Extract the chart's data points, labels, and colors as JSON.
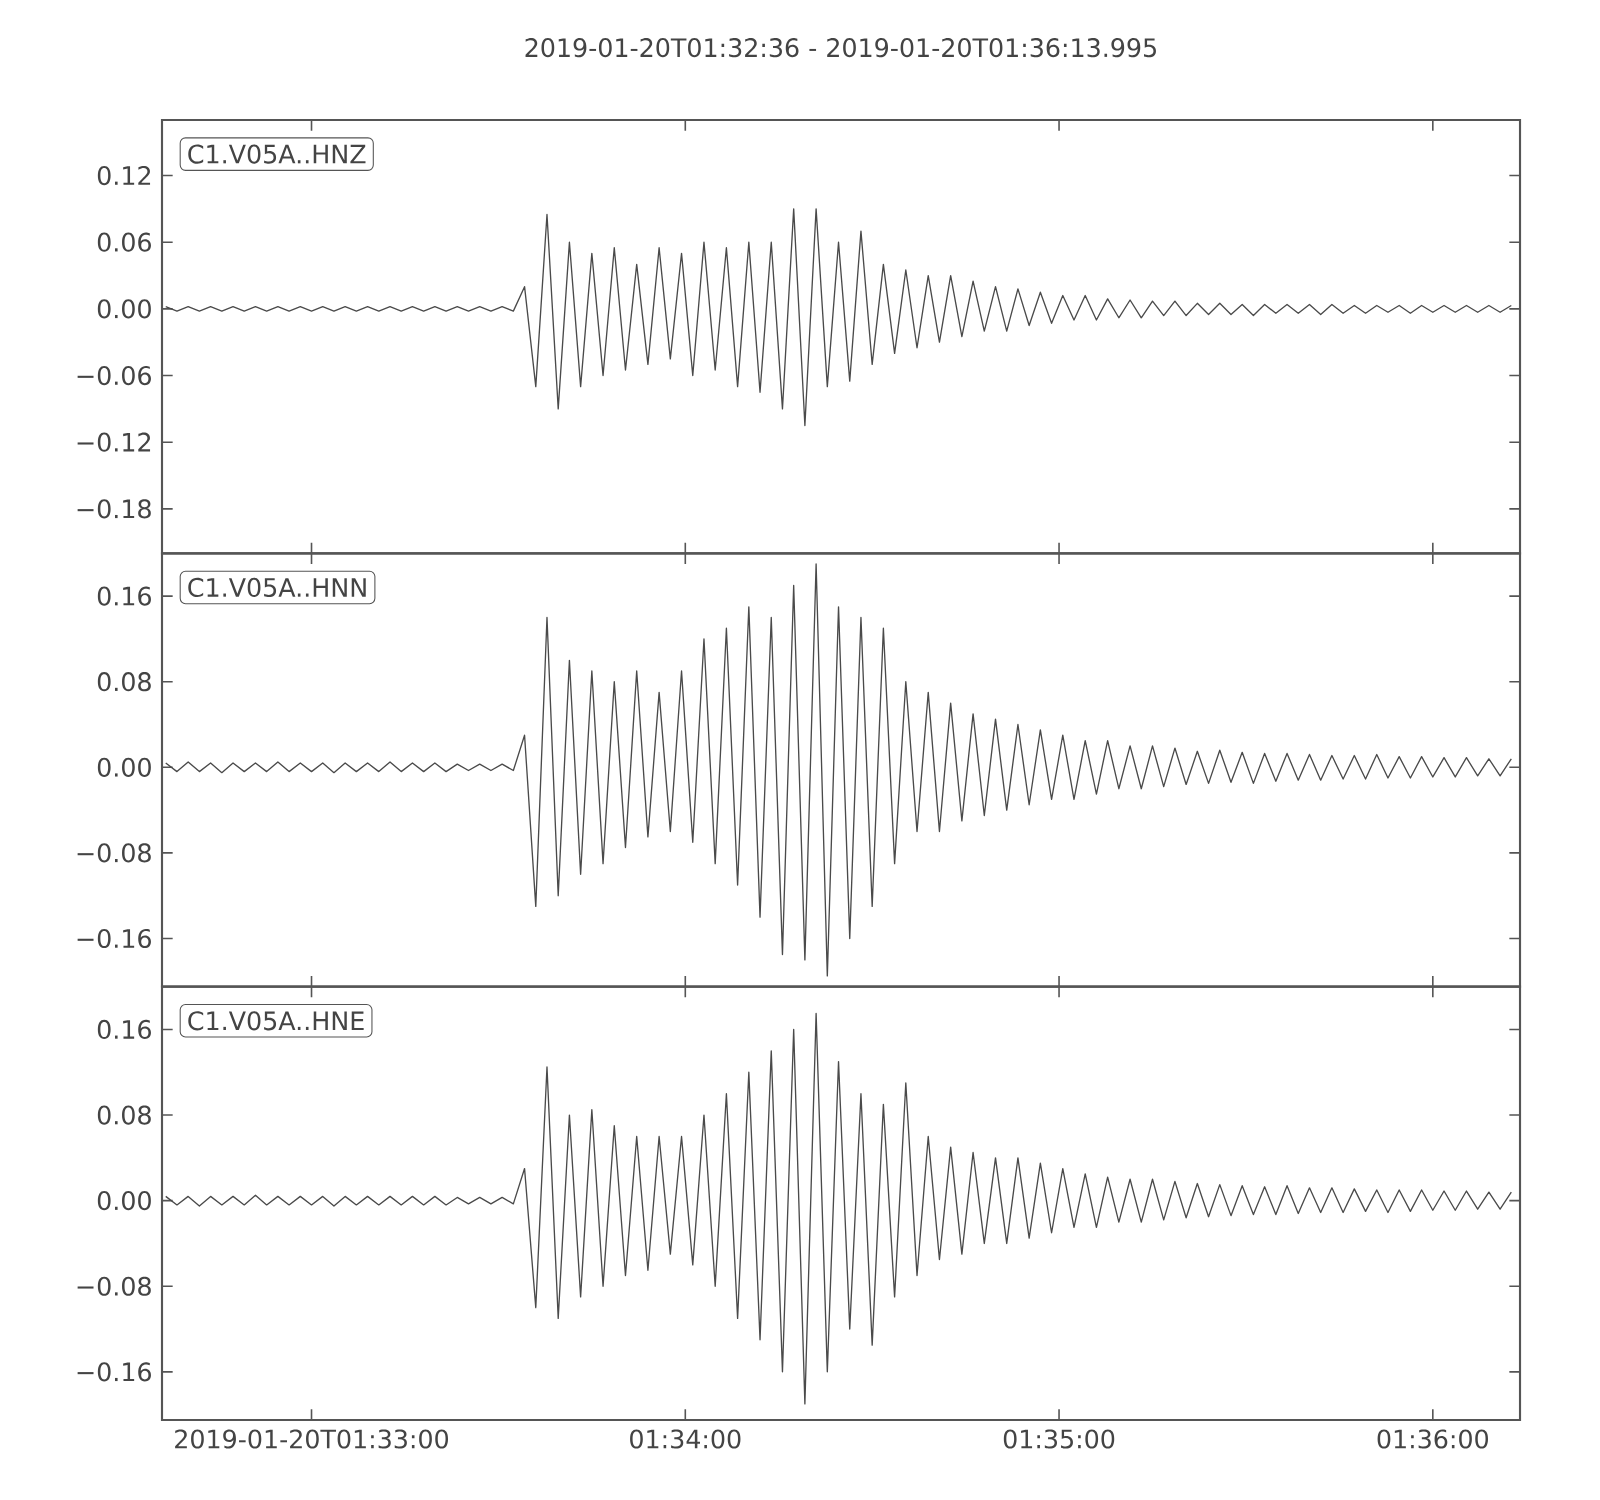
{
  "chart_data": [
    {
      "type": "line",
      "title": "2019-01-20T01:32:36 - 2019-01-20T01:36:13.995",
      "annotations": [
        "C1.V05A..HNZ"
      ],
      "tick_labels": "y",
      "xlim": [
        1.543333,
        1.603888
      ],
      "ylim": [
        -0.22,
        0.17
      ],
      "xticks": [
        {
          "value": 1.55,
          "label": null
        },
        {
          "value": 1.566667,
          "label": null
        },
        {
          "value": 1.583333,
          "label": null
        },
        {
          "value": 1.6,
          "label": null
        }
      ],
      "yticks": [
        {
          "value": -0.18,
          "label": "−0.18"
        },
        {
          "value": -0.12,
          "label": "−0.12"
        },
        {
          "value": -0.06,
          "label": "−0.06"
        },
        {
          "value": 0,
          "label": "0.00"
        },
        {
          "value": 0.06,
          "label": "0.06"
        },
        {
          "value": 0.12,
          "label": "0.12"
        }
      ],
      "x": [
        1.5435,
        1.544,
        1.5445,
        1.545,
        1.5455,
        1.546,
        1.5465,
        1.547,
        1.5475,
        1.548,
        1.5485,
        1.549,
        1.5495,
        1.55,
        1.5505,
        1.551,
        1.5515,
        1.552,
        1.5525,
        1.553,
        1.5535,
        1.554,
        1.5545,
        1.555,
        1.5555,
        1.556,
        1.5565,
        1.557,
        1.5575,
        1.558,
        1.5585,
        1.559,
        1.5595,
        1.56,
        1.5605,
        1.561,
        1.5615,
        1.562,
        1.5625,
        1.563,
        1.5635,
        1.564,
        1.5645,
        1.565,
        1.5655,
        1.566,
        1.5665,
        1.567,
        1.5675,
        1.568,
        1.5685,
        1.569,
        1.5695,
        1.57,
        1.5705,
        1.571,
        1.5715,
        1.572,
        1.5725,
        1.573,
        1.5735,
        1.574,
        1.5745,
        1.575,
        1.5755,
        1.576,
        1.5765,
        1.577,
        1.5775,
        1.578,
        1.5785,
        1.579,
        1.5795,
        1.58,
        1.5805,
        1.581,
        1.5815,
        1.582,
        1.5825,
        1.583,
        1.5835,
        1.584,
        1.5845,
        1.585,
        1.5855,
        1.586,
        1.5865,
        1.587,
        1.5875,
        1.588,
        1.5885,
        1.589,
        1.5895,
        1.59,
        1.5905,
        1.591,
        1.5915,
        1.592,
        1.5925,
        1.593,
        1.5935,
        1.594,
        1.5945,
        1.595,
        1.5955,
        1.596,
        1.5965,
        1.597,
        1.5975,
        1.598,
        1.5985,
        1.599,
        1.5995,
        1.6,
        1.6005,
        1.601,
        1.6015,
        1.602,
        1.6025,
        1.603,
        1.6035
      ],
      "series": [
        {
          "color": "#4a4a4a",
          "values": [
            0.002,
            -0.002,
            0.002,
            -0.002,
            0.002,
            -0.002,
            0.002,
            -0.002,
            0.002,
            -0.002,
            0.002,
            -0.002,
            0.002,
            -0.002,
            0.002,
            -0.002,
            0.002,
            -0.002,
            0.002,
            -0.002,
            0.002,
            -0.002,
            0.002,
            -0.002,
            0.002,
            -0.002,
            0.002,
            -0.002,
            0.002,
            -0.002,
            0.002,
            -0.002,
            0.02,
            -0.07,
            0.085,
            -0.09,
            0.06,
            -0.07,
            0.05,
            -0.06,
            0.055,
            -0.055,
            0.04,
            -0.05,
            0.055,
            -0.045,
            0.05,
            -0.06,
            0.06,
            -0.055,
            0.055,
            -0.07,
            0.06,
            -0.075,
            0.06,
            -0.09,
            0.09,
            -0.105,
            0.09,
            -0.07,
            0.06,
            -0.065,
            0.07,
            -0.05,
            0.04,
            -0.04,
            0.035,
            -0.035,
            0.03,
            -0.03,
            0.03,
            -0.025,
            0.025,
            -0.02,
            0.02,
            -0.02,
            0.018,
            -0.015,
            0.015,
            -0.013,
            0.012,
            -0.01,
            0.012,
            -0.01,
            0.009,
            -0.008,
            0.008,
            -0.008,
            0.007,
            -0.006,
            0.007,
            -0.006,
            0.005,
            -0.005,
            0.005,
            -0.005,
            0.004,
            -0.006,
            0.004,
            -0.004,
            0.004,
            -0.004,
            0.004,
            -0.005,
            0.004,
            -0.004,
            0.003,
            -0.004,
            0.003,
            -0.003,
            0.003,
            -0.004,
            0.003,
            -0.003,
            0.003,
            -0.003,
            0.003,
            -0.003,
            0.003,
            -0.003,
            0.003
          ]
        }
      ]
    },
    {
      "type": "line",
      "annotations": [
        "C1.V05A..HNN"
      ],
      "tick_labels": "y",
      "xlim": [
        1.543333,
        1.603888
      ],
      "ylim": [
        -0.205,
        0.2
      ],
      "xticks": [
        {
          "value": 1.55,
          "label": null
        },
        {
          "value": 1.566667,
          "label": null
        },
        {
          "value": 1.583333,
          "label": null
        },
        {
          "value": 1.6,
          "label": null
        }
      ],
      "yticks": [
        {
          "value": -0.16,
          "label": "−0.16"
        },
        {
          "value": -0.08,
          "label": "−0.08"
        },
        {
          "value": 0,
          "label": "0.00"
        },
        {
          "value": 0.08,
          "label": "0.08"
        },
        {
          "value": 0.16,
          "label": "0.16"
        }
      ],
      "x": [
        1.5435,
        1.544,
        1.5445,
        1.545,
        1.5455,
        1.546,
        1.5465,
        1.547,
        1.5475,
        1.548,
        1.5485,
        1.549,
        1.5495,
        1.55,
        1.5505,
        1.551,
        1.5515,
        1.552,
        1.5525,
        1.553,
        1.5535,
        1.554,
        1.5545,
        1.555,
        1.5555,
        1.556,
        1.5565,
        1.557,
        1.5575,
        1.558,
        1.5585,
        1.559,
        1.5595,
        1.56,
        1.5605,
        1.561,
        1.5615,
        1.562,
        1.5625,
        1.563,
        1.5635,
        1.564,
        1.5645,
        1.565,
        1.5655,
        1.566,
        1.5665,
        1.567,
        1.5675,
        1.568,
        1.5685,
        1.569,
        1.5695,
        1.57,
        1.5705,
        1.571,
        1.5715,
        1.572,
        1.5725,
        1.573,
        1.5735,
        1.574,
        1.5745,
        1.575,
        1.5755,
        1.576,
        1.5765,
        1.577,
        1.5775,
        1.578,
        1.5785,
        1.579,
        1.5795,
        1.58,
        1.5805,
        1.581,
        1.5815,
        1.582,
        1.5825,
        1.583,
        1.5835,
        1.584,
        1.5845,
        1.585,
        1.5855,
        1.586,
        1.5865,
        1.587,
        1.5875,
        1.588,
        1.5885,
        1.589,
        1.5895,
        1.59,
        1.5905,
        1.591,
        1.5915,
        1.592,
        1.5925,
        1.593,
        1.5935,
        1.594,
        1.5945,
        1.595,
        1.5955,
        1.596,
        1.5965,
        1.597,
        1.5975,
        1.598,
        1.5985,
        1.599,
        1.5995,
        1.6,
        1.6005,
        1.601,
        1.6015,
        1.602,
        1.6025,
        1.603,
        1.6035
      ],
      "series": [
        {
          "color": "#4a4a4a",
          "values": [
            0.004,
            -0.004,
            0.005,
            -0.004,
            0.004,
            -0.005,
            0.004,
            -0.004,
            0.004,
            -0.004,
            0.005,
            -0.004,
            0.004,
            -0.004,
            0.004,
            -0.005,
            0.004,
            -0.004,
            0.004,
            -0.004,
            0.005,
            -0.004,
            0.004,
            -0.004,
            0.004,
            -0.004,
            0.003,
            -0.003,
            0.003,
            -0.003,
            0.003,
            -0.003,
            0.03,
            -0.13,
            0.14,
            -0.12,
            0.1,
            -0.1,
            0.09,
            -0.09,
            0.08,
            -0.075,
            0.09,
            -0.065,
            0.07,
            -0.06,
            0.09,
            -0.07,
            0.12,
            -0.09,
            0.13,
            -0.11,
            0.15,
            -0.14,
            0.14,
            -0.175,
            0.17,
            -0.18,
            0.19,
            -0.195,
            0.15,
            -0.16,
            0.14,
            -0.13,
            0.13,
            -0.09,
            0.08,
            -0.06,
            0.07,
            -0.06,
            0.06,
            -0.05,
            0.05,
            -0.045,
            0.045,
            -0.04,
            0.04,
            -0.035,
            0.035,
            -0.03,
            0.03,
            -0.03,
            0.025,
            -0.025,
            0.025,
            -0.02,
            0.02,
            -0.02,
            0.02,
            -0.018,
            0.018,
            -0.016,
            0.015,
            -0.015,
            0.016,
            -0.014,
            0.014,
            -0.015,
            0.013,
            -0.013,
            0.013,
            -0.012,
            0.012,
            -0.012,
            0.011,
            -0.011,
            0.011,
            -0.011,
            0.012,
            -0.01,
            0.01,
            -0.01,
            0.01,
            -0.009,
            0.009,
            -0.009,
            0.009,
            -0.008,
            0.008,
            -0.008,
            0.008
          ]
        }
      ]
    },
    {
      "type": "line",
      "annotations": [
        "C1.V05A..HNE"
      ],
      "xlim": [
        1.543333,
        1.603888
      ],
      "ylim": [
        -0.205,
        0.2
      ],
      "xticks": [
        {
          "value": 1.55,
          "label": "2019-01-20T01:33:00"
        },
        {
          "value": 1.566667,
          "label": "01:34:00"
        },
        {
          "value": 1.583333,
          "label": "01:35:00"
        },
        {
          "value": 1.6,
          "label": "01:36:00"
        }
      ],
      "yticks": [
        {
          "value": -0.16,
          "label": "−0.16"
        },
        {
          "value": -0.08,
          "label": "−0.08"
        },
        {
          "value": 0,
          "label": "0.00"
        },
        {
          "value": 0.08,
          "label": "0.08"
        },
        {
          "value": 0.16,
          "label": "0.16"
        }
      ],
      "x": [
        1.5435,
        1.544,
        1.5445,
        1.545,
        1.5455,
        1.546,
        1.5465,
        1.547,
        1.5475,
        1.548,
        1.5485,
        1.549,
        1.5495,
        1.55,
        1.5505,
        1.551,
        1.5515,
        1.552,
        1.5525,
        1.553,
        1.5535,
        1.554,
        1.5545,
        1.555,
        1.5555,
        1.556,
        1.5565,
        1.557,
        1.5575,
        1.558,
        1.5585,
        1.559,
        1.5595,
        1.56,
        1.5605,
        1.561,
        1.5615,
        1.562,
        1.5625,
        1.563,
        1.5635,
        1.564,
        1.5645,
        1.565,
        1.5655,
        1.566,
        1.5665,
        1.567,
        1.5675,
        1.568,
        1.5685,
        1.569,
        1.5695,
        1.57,
        1.5705,
        1.571,
        1.5715,
        1.572,
        1.5725,
        1.573,
        1.5735,
        1.574,
        1.5745,
        1.575,
        1.5755,
        1.576,
        1.5765,
        1.577,
        1.5775,
        1.578,
        1.5785,
        1.579,
        1.5795,
        1.58,
        1.5805,
        1.581,
        1.5815,
        1.582,
        1.5825,
        1.583,
        1.5835,
        1.584,
        1.5845,
        1.585,
        1.5855,
        1.586,
        1.5865,
        1.587,
        1.5875,
        1.588,
        1.5885,
        1.589,
        1.5895,
        1.59,
        1.5905,
        1.591,
        1.5915,
        1.592,
        1.5925,
        1.593,
        1.5935,
        1.594,
        1.5945,
        1.595,
        1.5955,
        1.596,
        1.5965,
        1.597,
        1.5975,
        1.598,
        1.5985,
        1.599,
        1.5995,
        1.6,
        1.6005,
        1.601,
        1.6015,
        1.602,
        1.6025,
        1.603,
        1.6035
      ],
      "series": [
        {
          "color": "#4a4a4a",
          "values": [
            0.004,
            -0.004,
            0.004,
            -0.005,
            0.004,
            -0.004,
            0.004,
            -0.004,
            0.005,
            -0.004,
            0.004,
            -0.004,
            0.004,
            -0.004,
            0.004,
            -0.005,
            0.004,
            -0.004,
            0.004,
            -0.004,
            0.004,
            -0.004,
            0.004,
            -0.004,
            0.004,
            -0.004,
            0.003,
            -0.003,
            0.003,
            -0.003,
            0.003,
            -0.003,
            0.03,
            -0.1,
            0.125,
            -0.11,
            0.08,
            -0.09,
            0.085,
            -0.08,
            0.07,
            -0.07,
            0.06,
            -0.065,
            0.06,
            -0.05,
            0.06,
            -0.06,
            0.08,
            -0.08,
            0.1,
            -0.11,
            0.12,
            -0.13,
            0.14,
            -0.16,
            0.16,
            -0.19,
            0.175,
            -0.16,
            0.13,
            -0.12,
            0.1,
            -0.135,
            0.09,
            -0.09,
            0.11,
            -0.07,
            0.06,
            -0.055,
            0.05,
            -0.05,
            0.045,
            -0.04,
            0.04,
            -0.04,
            0.04,
            -0.035,
            0.035,
            -0.03,
            0.03,
            -0.025,
            0.025,
            -0.025,
            0.022,
            -0.02,
            0.02,
            -0.02,
            0.02,
            -0.018,
            0.018,
            -0.016,
            0.016,
            -0.015,
            0.015,
            -0.014,
            0.014,
            -0.013,
            0.013,
            -0.013,
            0.014,
            -0.012,
            0.012,
            -0.011,
            0.012,
            -0.011,
            0.011,
            -0.01,
            0.01,
            -0.011,
            0.01,
            -0.01,
            0.01,
            -0.009,
            0.009,
            -0.009,
            0.009,
            -0.008,
            0.008,
            -0.008,
            0.008
          ]
        }
      ]
    }
  ]
}
